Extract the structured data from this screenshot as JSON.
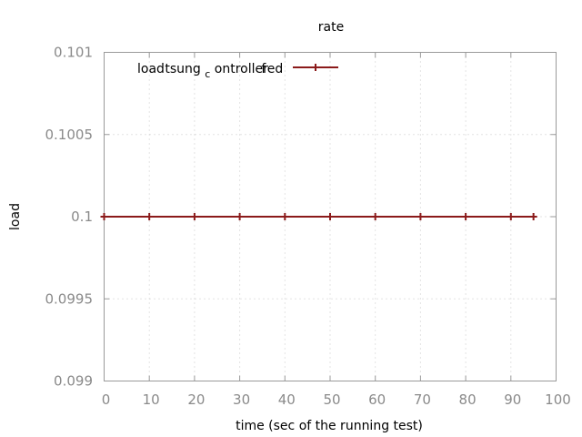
{
  "chart_data": {
    "type": "line",
    "title": "rate",
    "xlabel": "time (sec of the running test)",
    "ylabel": "load",
    "xlim": [
      0,
      100
    ],
    "ylim": [
      0.099,
      0.101
    ],
    "x_ticks": [
      "0",
      "10",
      "20",
      "30",
      "40",
      "50",
      "60",
      "70",
      "80",
      "90",
      "100"
    ],
    "y_ticks": [
      "0.099",
      "0.0995",
      "0.1",
      "0.1005",
      "0.101"
    ],
    "grid": true,
    "legend_position": "top-left",
    "legend": {
      "parts": [
        "load",
        "tsung",
        "c",
        "ontroller",
        "f",
        "ed"
      ]
    },
    "series": [
      {
        "name": "loadtsung_controllerfed",
        "color": "#8b1a1a",
        "x": [
          0,
          10,
          20,
          30,
          40,
          50,
          60,
          70,
          80,
          90,
          95
        ],
        "values": [
          0.1,
          0.1,
          0.1,
          0.1,
          0.1,
          0.1,
          0.1,
          0.1,
          0.1,
          0.1,
          0.1
        ]
      }
    ]
  }
}
